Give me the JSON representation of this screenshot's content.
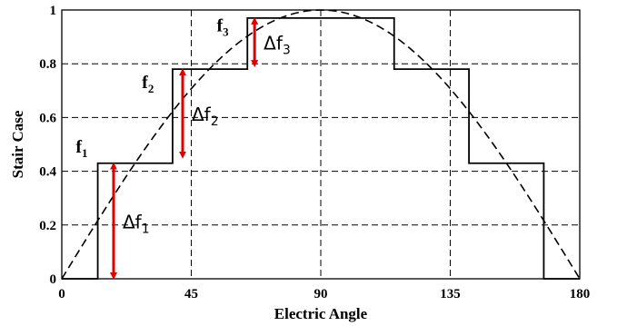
{
  "chart_data": {
    "type": "line",
    "title": "",
    "xlabel": "Electric Angle",
    "ylabel": "Stair Case",
    "xlim": [
      0,
      180
    ],
    "ylim": [
      0,
      1
    ],
    "xticks": [
      0,
      45,
      90,
      135,
      180
    ],
    "yticks": [
      0,
      0.2,
      0.4,
      0.6,
      0.8,
      1
    ],
    "xtick_labels": [
      "0",
      "45",
      "90",
      "135",
      "180"
    ],
    "ytick_labels": [
      "0",
      "0.2",
      "0.4",
      "0.6",
      "0.8",
      "1"
    ],
    "grid": true,
    "series": [
      {
        "style": "solid-step",
        "x": [
          0,
          12.5,
          12.5,
          38.5,
          38.5,
          64.5,
          64.5,
          115.5,
          115.5,
          141.5,
          141.5,
          167.5,
          167.5,
          180
        ],
        "y": [
          0,
          0,
          0.43,
          0.43,
          0.78,
          0.78,
          0.97,
          0.97,
          0.78,
          0.78,
          0.43,
          0.43,
          0,
          0
        ]
      },
      {
        "style": "dashed",
        "function": "sin",
        "x": [
          0,
          15,
          30,
          45,
          60,
          75,
          90,
          105,
          120,
          135,
          150,
          165,
          180
        ],
        "y": [
          0,
          0.259,
          0.5,
          0.707,
          0.866,
          0.966,
          1,
          0.966,
          0.866,
          0.707,
          0.5,
          0.259,
          0
        ]
      }
    ],
    "annotations": [
      {
        "label": "f",
        "sub": "1",
        "x": 8,
        "y": 0.47
      },
      {
        "label": "f",
        "sub": "2",
        "x": 31,
        "y": 0.71
      },
      {
        "label": "f",
        "sub": "3",
        "x": 57,
        "y": 0.92
      }
    ],
    "arrows": [
      {
        "label": "Δf",
        "sub": "1",
        "x": 18,
        "y_from": 0,
        "y_to": 0.43,
        "color": "#e00000"
      },
      {
        "label": "Δf",
        "sub": "2",
        "x": 42,
        "y_from": 0.45,
        "y_to": 0.78,
        "color": "#e00000"
      },
      {
        "label": "Δf",
        "sub": "3",
        "x": 67,
        "y_from": 0.79,
        "y_to": 0.97,
        "color": "#e00000"
      }
    ]
  }
}
